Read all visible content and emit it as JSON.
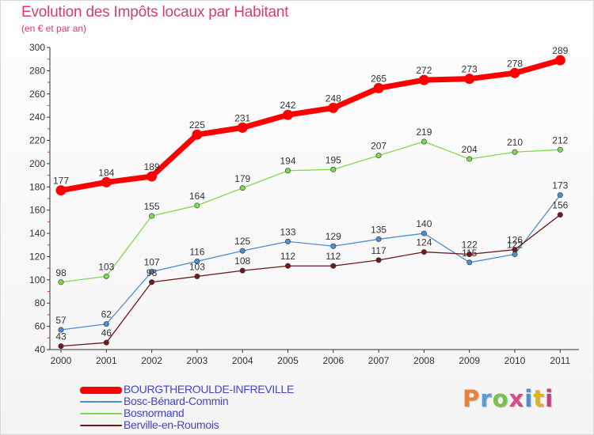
{
  "title": "Evolution des Impôts locaux par Habitant",
  "subtitle": "(en € et par an)",
  "brand": "Proxiti",
  "brand_colors": [
    "#e8843a",
    "#5a9ad6",
    "#7cc14a",
    "#d94a8c",
    "#4a8fd6",
    "#e0b020",
    "#c04080"
  ],
  "chart_data": {
    "type": "line",
    "title": "Evolution des Impôts locaux par Habitant",
    "subtitle": "(en € et par an)",
    "xlabel": "",
    "ylabel": "",
    "x": [
      "2000",
      "2001",
      "2002",
      "2003",
      "2004",
      "2005",
      "2006",
      "2007",
      "2008",
      "2009",
      "2010",
      "2011"
    ],
    "ylim": [
      40,
      300
    ],
    "yticks": [
      40,
      60,
      80,
      100,
      120,
      140,
      160,
      180,
      200,
      220,
      240,
      260,
      280,
      300
    ],
    "grid": "none",
    "legend_position": "bottom-left",
    "series": [
      {
        "name": "BOURGTHEROULDE-INFREVILLE",
        "color": "#ff0000",
        "emphasis": true,
        "values": [
          177,
          184,
          189,
          225,
          231,
          242,
          248,
          265,
          272,
          273,
          278,
          289
        ]
      },
      {
        "name": "Bosc-Bénard-Commin",
        "color": "#4d8fd0",
        "values": [
          57,
          62,
          107,
          116,
          125,
          133,
          129,
          135,
          140,
          115,
          122,
          173
        ]
      },
      {
        "name": "Bosnormand",
        "color": "#80d850",
        "values": [
          98,
          103,
          155,
          164,
          179,
          194,
          195,
          207,
          219,
          204,
          210,
          212
        ]
      },
      {
        "name": "Berville-en-Roumois",
        "color": "#6e1a1a",
        "values": [
          43,
          46,
          98,
          103,
          108,
          112,
          112,
          117,
          124,
          122,
          126,
          156
        ]
      }
    ]
  }
}
